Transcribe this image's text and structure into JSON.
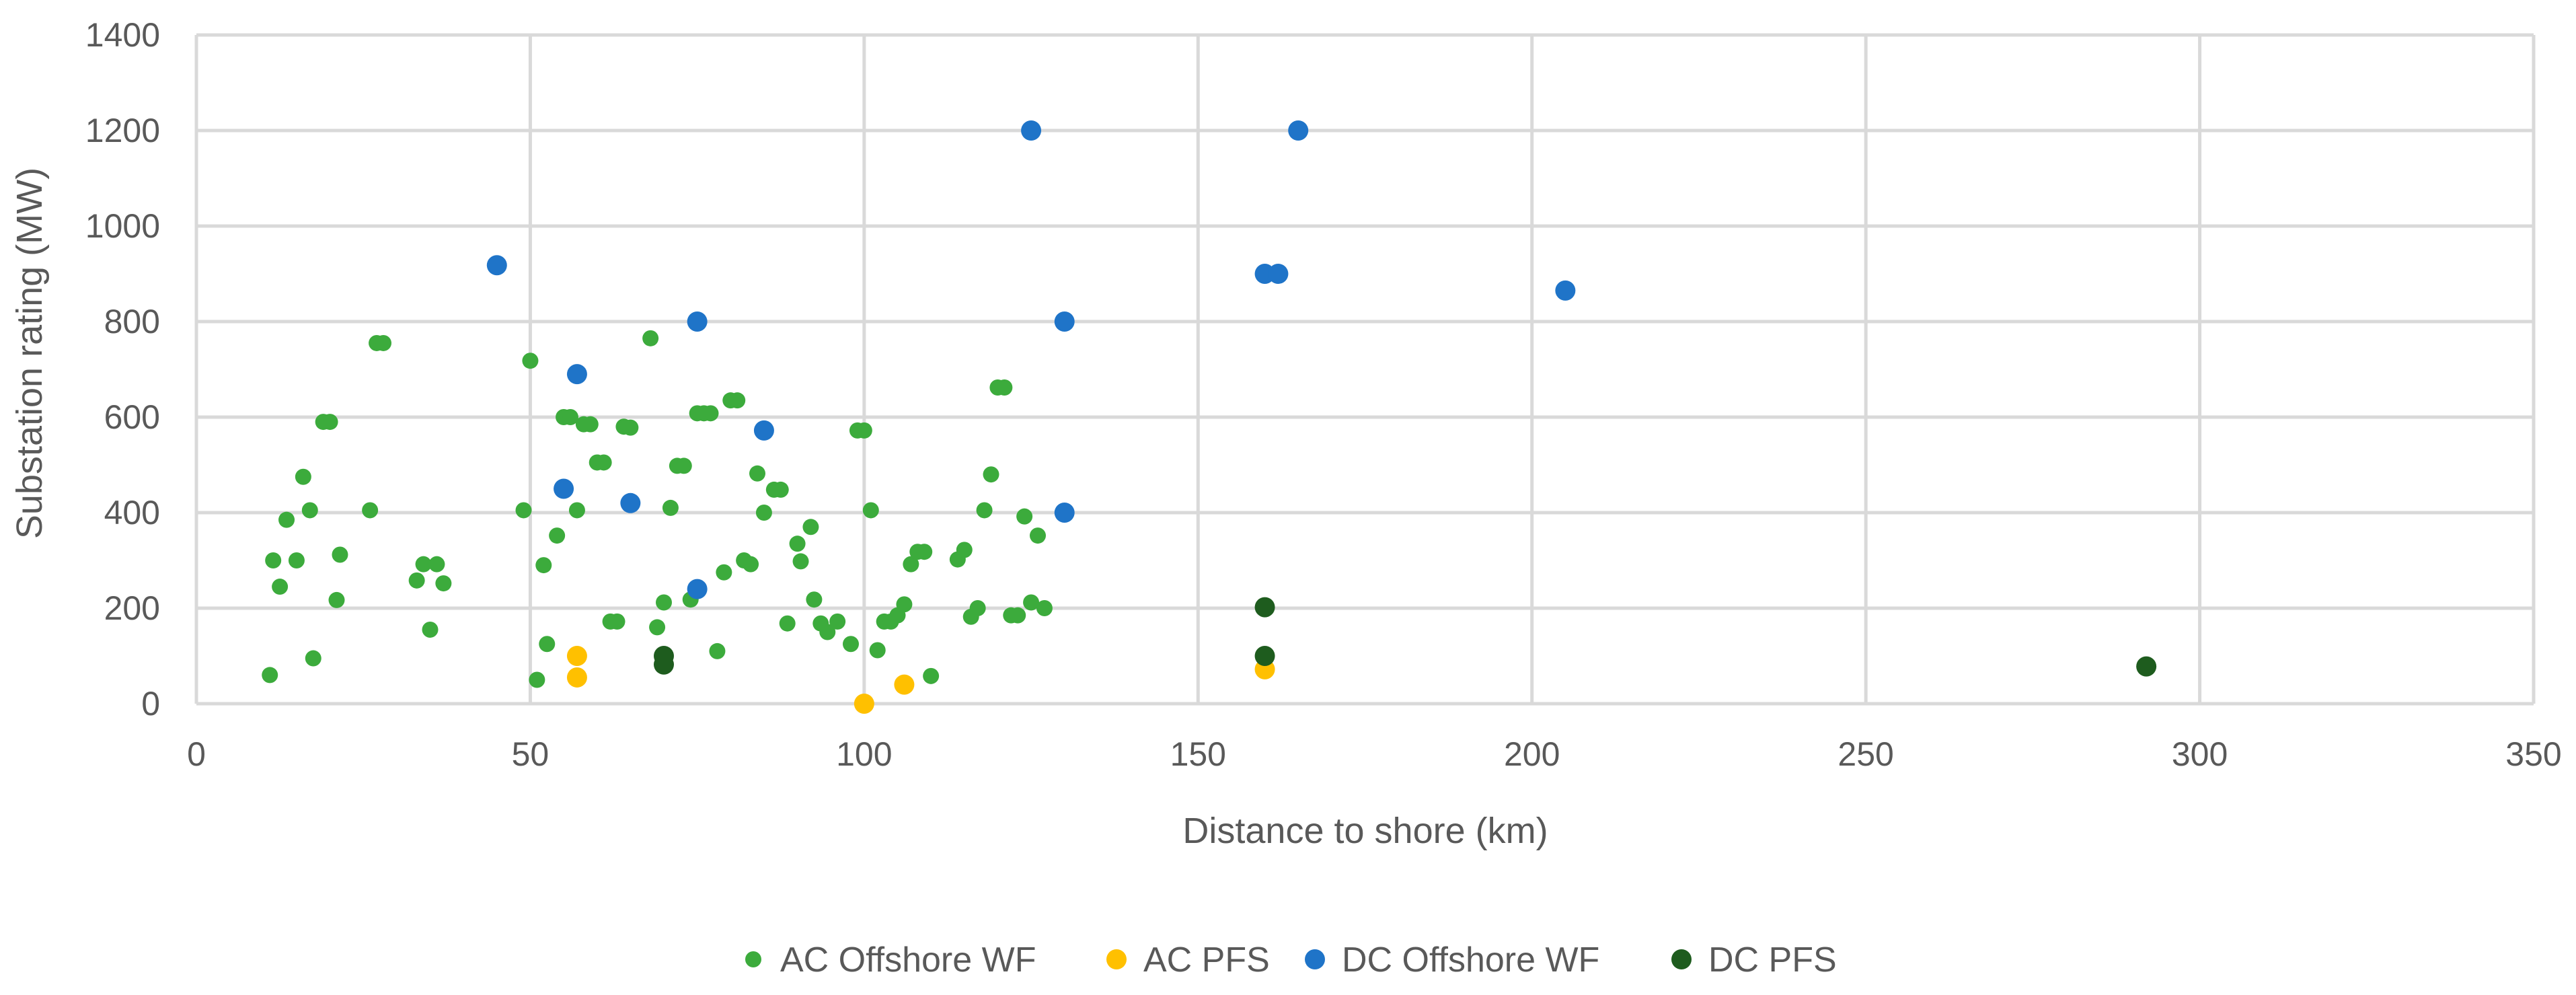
{
  "chart_data": {
    "type": "scatter",
    "title": "",
    "xlabel": "Distance to shore (km)",
    "ylabel": "Substation rating (MW)",
    "xlim": [
      0,
      350
    ],
    "ylim": [
      0,
      1400
    ],
    "xticks": [
      0,
      50,
      100,
      150,
      200,
      250,
      300,
      350
    ],
    "yticks": [
      0,
      200,
      400,
      600,
      800,
      1000,
      1200,
      1400
    ],
    "grid": true,
    "legend_position": "bottom",
    "series": [
      {
        "name": "AC Offshore WF",
        "color": "#3cab3c",
        "points": [
          [
            11,
            60
          ],
          [
            11.5,
            300
          ],
          [
            12.5,
            245
          ],
          [
            13.5,
            385
          ],
          [
            15,
            300
          ],
          [
            16,
            475
          ],
          [
            17,
            405
          ],
          [
            17.5,
            95
          ],
          [
            19,
            590
          ],
          [
            20,
            590
          ],
          [
            21,
            217
          ],
          [
            21.5,
            312
          ],
          [
            26,
            405
          ],
          [
            27,
            755
          ],
          [
            28,
            755
          ],
          [
            33,
            258
          ],
          [
            34,
            292
          ],
          [
            35,
            155
          ],
          [
            36,
            292
          ],
          [
            37,
            252
          ],
          [
            49,
            405
          ],
          [
            50,
            718
          ],
          [
            51,
            50
          ],
          [
            52,
            290
          ],
          [
            52.5,
            125
          ],
          [
            54,
            352
          ],
          [
            55,
            600
          ],
          [
            56,
            600
          ],
          [
            57,
            405
          ],
          [
            58,
            585
          ],
          [
            59,
            585
          ],
          [
            60,
            505
          ],
          [
            61,
            505
          ],
          [
            62,
            172
          ],
          [
            63,
            172
          ],
          [
            64,
            580
          ],
          [
            65,
            578
          ],
          [
            68,
            765
          ],
          [
            69,
            160
          ],
          [
            70,
            212
          ],
          [
            71,
            410
          ],
          [
            72,
            498
          ],
          [
            73,
            498
          ],
          [
            74,
            218
          ],
          [
            75,
            608
          ],
          [
            76,
            608
          ],
          [
            77,
            608
          ],
          [
            78,
            110
          ],
          [
            79,
            275
          ],
          [
            80,
            635
          ],
          [
            81,
            635
          ],
          [
            82,
            300
          ],
          [
            83,
            292
          ],
          [
            84,
            482
          ],
          [
            85,
            400
          ],
          [
            86.5,
            448
          ],
          [
            87.5,
            448
          ],
          [
            88.5,
            168
          ],
          [
            90,
            335
          ],
          [
            90.5,
            298
          ],
          [
            92,
            370
          ],
          [
            92.5,
            218
          ],
          [
            93.5,
            168
          ],
          [
            94.5,
            150
          ],
          [
            96,
            172
          ],
          [
            98,
            125
          ],
          [
            99,
            572
          ],
          [
            100,
            572
          ],
          [
            101,
            405
          ],
          [
            102,
            112
          ],
          [
            103,
            172
          ],
          [
            104,
            172
          ],
          [
            105,
            185
          ],
          [
            106,
            208
          ],
          [
            107,
            292
          ],
          [
            108,
            318
          ],
          [
            109,
            318
          ],
          [
            110,
            58
          ],
          [
            114,
            302
          ],
          [
            115,
            322
          ],
          [
            116,
            182
          ],
          [
            117,
            200
          ],
          [
            118,
            405
          ],
          [
            119,
            480
          ],
          [
            120,
            662
          ],
          [
            121,
            662
          ],
          [
            122,
            185
          ],
          [
            123,
            185
          ],
          [
            124,
            392
          ],
          [
            125,
            212
          ],
          [
            126,
            352
          ],
          [
            127,
            200
          ]
        ]
      },
      {
        "name": "AC PFS",
        "color": "#ffc000",
        "points": [
          [
            57,
            100
          ],
          [
            57,
            55
          ],
          [
            100,
            0
          ],
          [
            106,
            40
          ],
          [
            160,
            72
          ]
        ]
      },
      {
        "name": "DC Offshore WF",
        "color": "#1f74c8",
        "points": [
          [
            45,
            918
          ],
          [
            55,
            450
          ],
          [
            57,
            690
          ],
          [
            65,
            420
          ],
          [
            75,
            800
          ],
          [
            75,
            240
          ],
          [
            85,
            572
          ],
          [
            125,
            1200
          ],
          [
            130,
            800
          ],
          [
            130,
            400
          ],
          [
            160,
            900
          ],
          [
            162,
            900
          ],
          [
            165,
            1200
          ],
          [
            205,
            865
          ]
        ]
      },
      {
        "name": "DC PFS",
        "color": "#1e5c1e",
        "points": [
          [
            70,
            100
          ],
          [
            70,
            82
          ],
          [
            160,
            202
          ],
          [
            160,
            100
          ],
          [
            292,
            78
          ]
        ]
      }
    ]
  }
}
